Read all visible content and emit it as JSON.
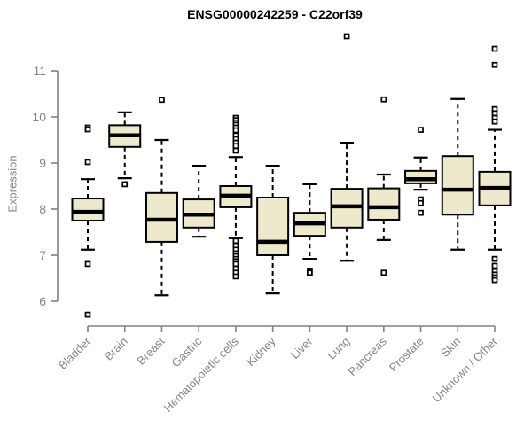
{
  "chart_data": {
    "type": "boxplot",
    "title": "ENSG00000242259 - C22orf39",
    "xlabel": "",
    "ylabel": "Expression",
    "ylim": [
      6,
      11
    ],
    "yticks": [
      6,
      7,
      8,
      9,
      10,
      11
    ],
    "grid": false,
    "legend": "none",
    "colors": {
      "box_fill": "#EEE8CD",
      "box_stroke": "#000000",
      "median": "#000000",
      "whisker": "#000000",
      "axis": "#808080",
      "tick_label": "#858585",
      "title": "#000000",
      "background": "#ffffff"
    },
    "categories": [
      "Bladder",
      "Brain",
      "Breast",
      "Gastric",
      "Hematopoietic cells",
      "Kidney",
      "Liver",
      "Lung",
      "Pancreas",
      "Prostate",
      "Skin",
      "Unknown / Other"
    ],
    "series": [
      {
        "category": "Bladder",
        "low": 7.12,
        "q1": 7.75,
        "median": 7.94,
        "q3": 8.23,
        "high": 8.65,
        "outliers": [
          9.77,
          9.73,
          9.02,
          6.81,
          5.71
        ]
      },
      {
        "category": "Brain",
        "low": 8.67,
        "q1": 9.35,
        "median": 9.6,
        "q3": 9.82,
        "high": 10.1,
        "outliers": [
          8.54
        ]
      },
      {
        "category": "Breast",
        "low": 6.13,
        "q1": 7.29,
        "median": 7.77,
        "q3": 8.35,
        "high": 9.5,
        "outliers": [
          10.37
        ]
      },
      {
        "category": "Gastric",
        "low": 7.4,
        "q1": 7.6,
        "median": 7.88,
        "q3": 8.21,
        "high": 8.94,
        "outliers": []
      },
      {
        "category": "Hematopoietic cells",
        "low": 7.37,
        "q1": 8.04,
        "median": 8.29,
        "q3": 8.5,
        "high": 9.13,
        "outliers": [
          9.98,
          9.93,
          9.88,
          9.83,
          9.77,
          9.71,
          9.6,
          9.52,
          9.44,
          9.37,
          9.27,
          7.31,
          7.21,
          7.12,
          7.04,
          6.98,
          6.92,
          6.87,
          6.81,
          6.71,
          6.62,
          6.54
        ]
      },
      {
        "category": "Kidney",
        "low": 6.17,
        "q1": 7.0,
        "median": 7.29,
        "q3": 8.25,
        "high": 8.94,
        "outliers": []
      },
      {
        "category": "Liver",
        "low": 6.92,
        "q1": 7.42,
        "median": 7.69,
        "q3": 7.92,
        "high": 8.54,
        "outliers": [
          6.65,
          6.62
        ]
      },
      {
        "category": "Lung",
        "low": 6.88,
        "q1": 7.6,
        "median": 8.06,
        "q3": 8.44,
        "high": 9.44,
        "outliers": [
          11.75
        ]
      },
      {
        "category": "Pancreas",
        "low": 7.33,
        "q1": 7.77,
        "median": 8.04,
        "q3": 8.45,
        "high": 8.75,
        "outliers": [
          10.38,
          6.62
        ]
      },
      {
        "category": "Prostate",
        "low": 8.42,
        "q1": 8.56,
        "median": 8.65,
        "q3": 8.83,
        "high": 9.12,
        "outliers": [
          9.72,
          8.21,
          8.13,
          7.92
        ]
      },
      {
        "category": "Skin",
        "low": 7.12,
        "q1": 7.88,
        "median": 8.42,
        "q3": 9.15,
        "high": 10.39,
        "outliers": []
      },
      {
        "category": "Unknown / Other",
        "low": 7.12,
        "q1": 8.08,
        "median": 8.46,
        "q3": 8.81,
        "high": 9.72,
        "outliers": [
          11.48,
          11.13,
          10.17,
          10.08,
          9.98,
          9.9,
          6.92,
          6.77,
          6.65,
          6.58,
          6.52,
          6.46
        ]
      }
    ]
  }
}
